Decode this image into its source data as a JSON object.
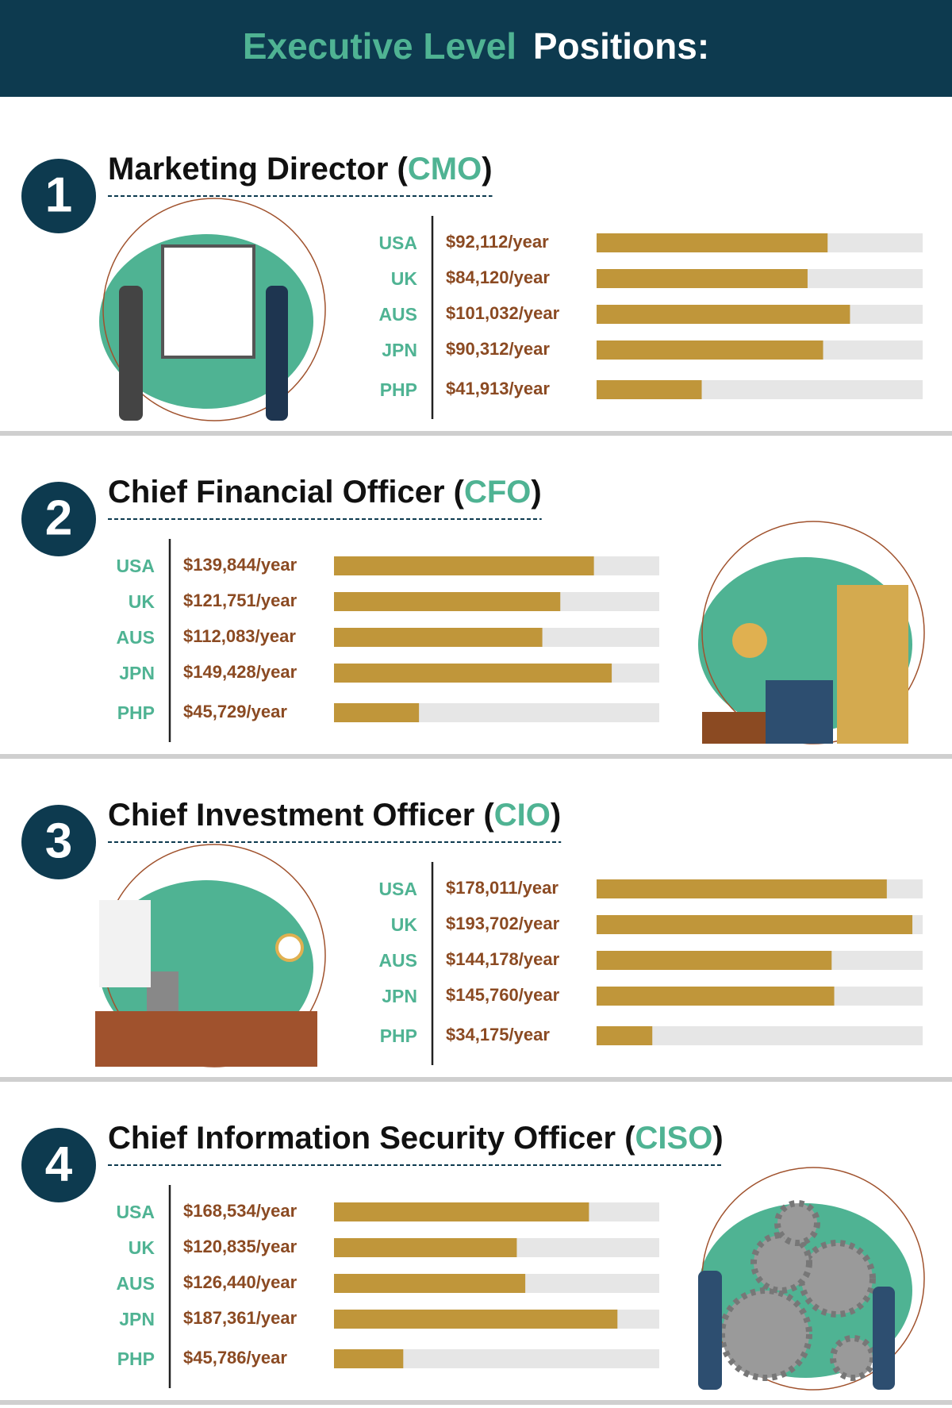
{
  "header": {
    "title": [
      "Executive Level",
      "Positions:"
    ]
  },
  "chart_data": [
    {
      "type": "bar",
      "number": 1,
      "title": [
        "Marketing Director (",
        "CMO",
        ")"
      ],
      "categories": [
        "USA",
        "UK",
        "AUS",
        "JPN",
        "PHP"
      ],
      "values": [
        92112,
        84120,
        101032,
        90312,
        41913
      ],
      "value_labels": [
        "$92,112/year",
        "$84,120/year",
        "$101,032/year",
        "$90,312/year",
        "$41,913/year"
      ],
      "xlim": [
        0,
        130000
      ],
      "color": "#c0963a"
    },
    {
      "type": "bar",
      "number": 2,
      "title": [
        "Chief Financial Officer (",
        "CFO",
        ")"
      ],
      "categories": [
        "USA",
        "UK",
        "AUS",
        "JPN",
        "PHP"
      ],
      "values": [
        139844,
        121751,
        112083,
        149428,
        45729
      ],
      "value_labels": [
        "$139,844/year",
        "$121,751/year",
        "$112,083/year",
        "$149,428/year",
        "$45,729/year"
      ],
      "xlim": [
        0,
        175000
      ],
      "color": "#c0963a"
    },
    {
      "type": "bar",
      "number": 3,
      "title": [
        "Chief Investment Officer (",
        "CIO",
        ")"
      ],
      "categories": [
        "USA",
        "UK",
        "AUS",
        "JPN",
        "PHP"
      ],
      "values": [
        178011,
        193702,
        144178,
        145760,
        34175
      ],
      "value_labels": [
        "$178,011/year",
        "$193,702/year",
        "$144,178/year",
        "$145,760/year",
        "$34,175/year"
      ],
      "xlim": [
        0,
        200000
      ],
      "color": "#c0963a"
    },
    {
      "type": "bar",
      "number": 4,
      "title": [
        "Chief Information Security Officer (",
        "CISO",
        ")"
      ],
      "categories": [
        "USA",
        "UK",
        "AUS",
        "JPN",
        "PHP"
      ],
      "values": [
        168534,
        120835,
        126440,
        187361,
        45786
      ],
      "value_labels": [
        "$168,534/year",
        "$120,835/year",
        "$126,440/year",
        "$187,361/year",
        "$45,786/year"
      ],
      "xlim": [
        0,
        215000
      ],
      "color": "#c0963a"
    }
  ]
}
